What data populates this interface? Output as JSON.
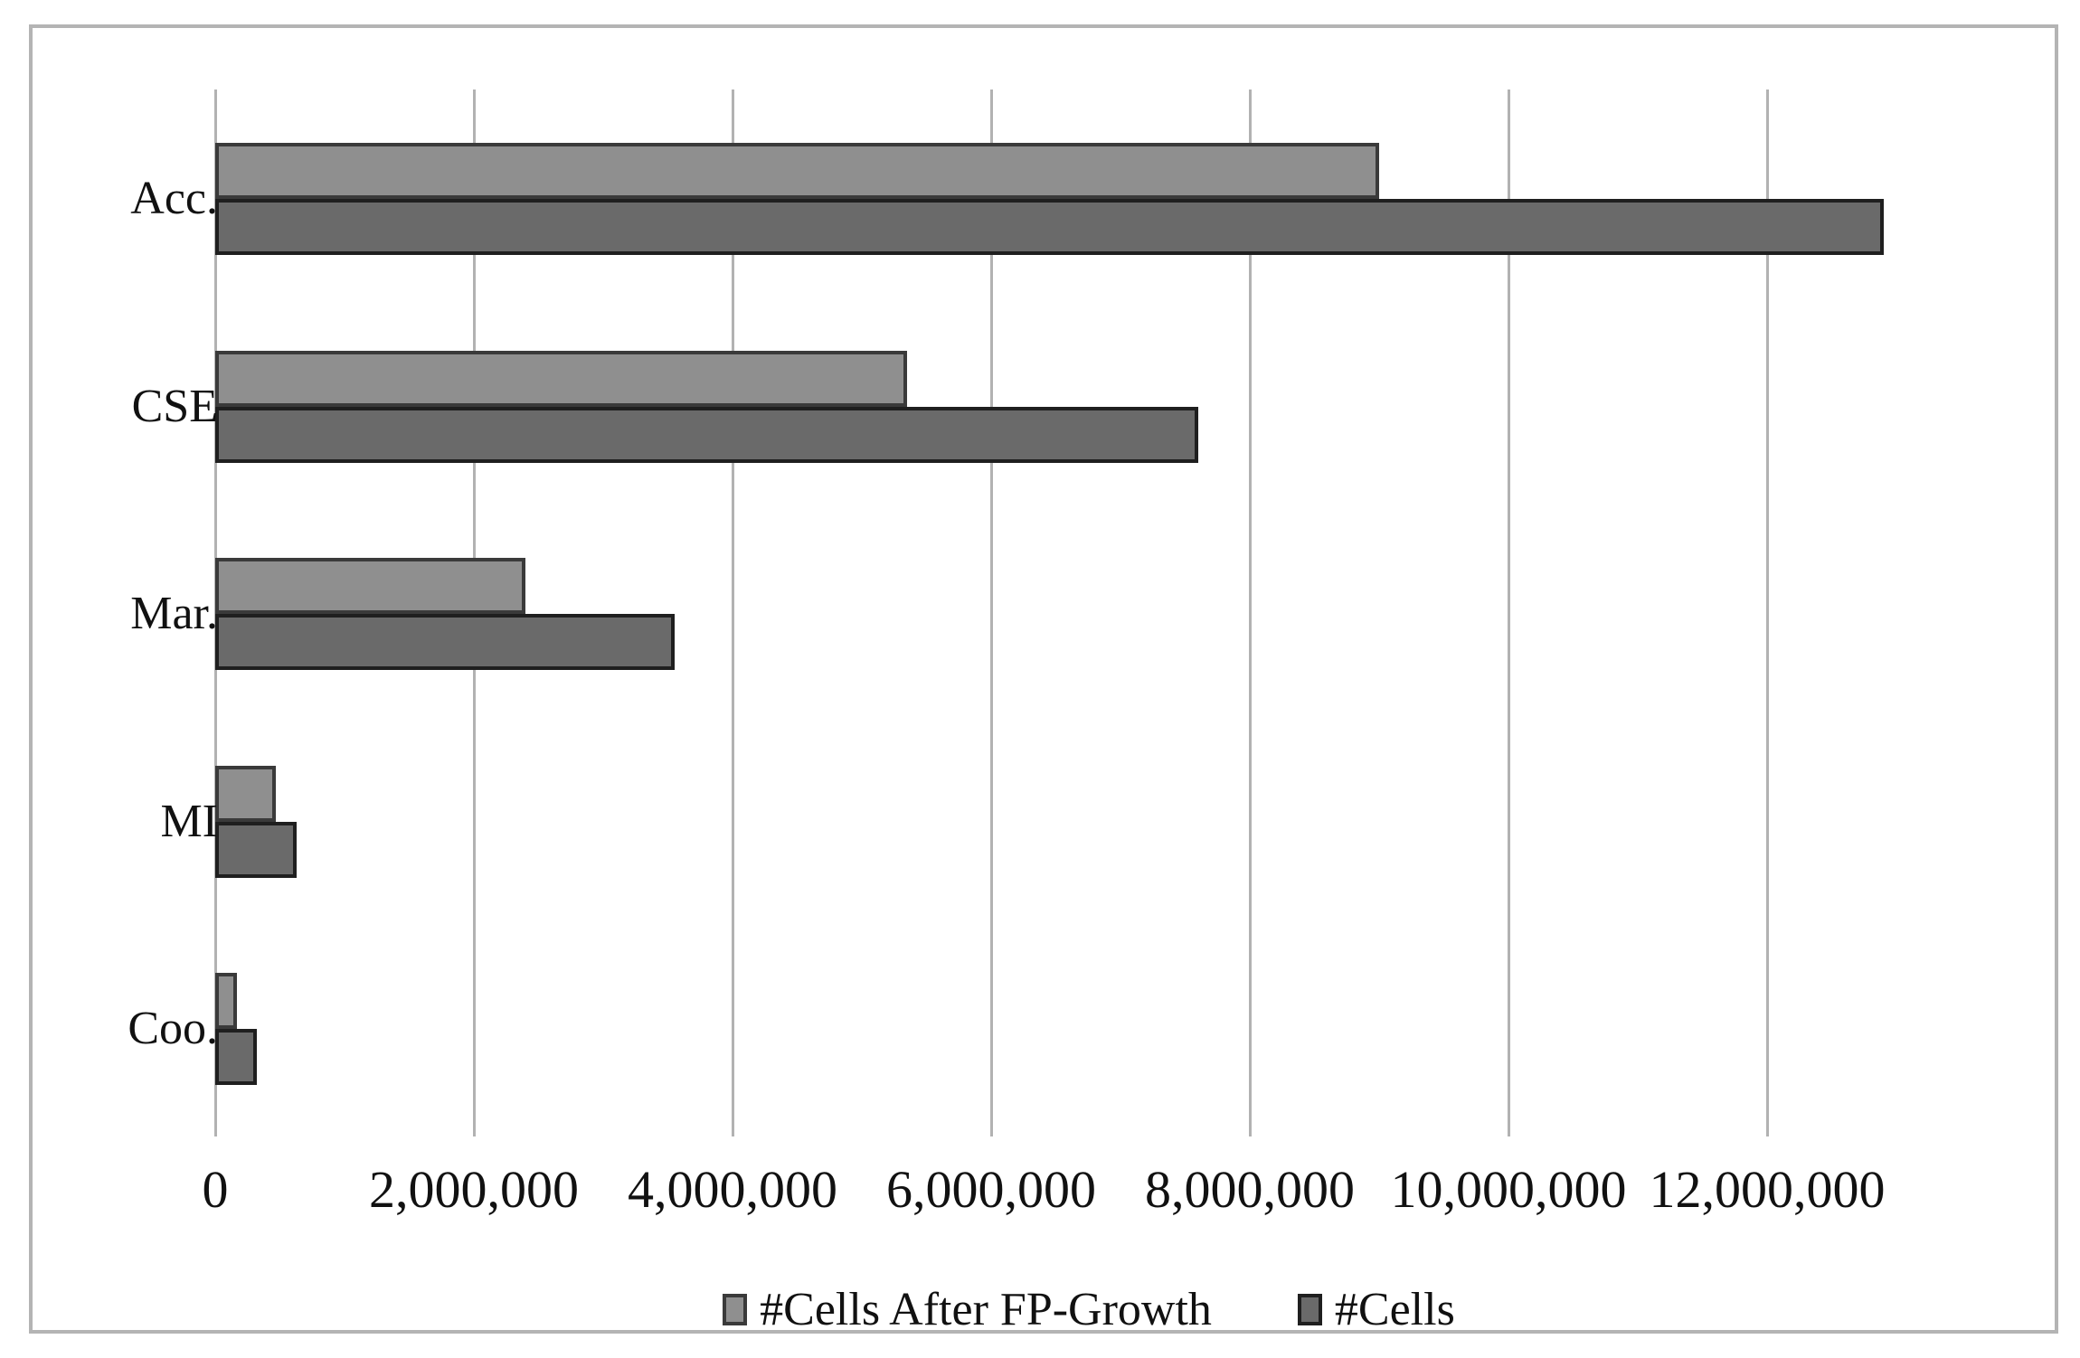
{
  "chart_data": {
    "type": "bar",
    "orientation": "horizontal",
    "title": "",
    "xlabel": "",
    "ylabel": "",
    "grid": "vertical-only",
    "legend_position": "bottom-center",
    "categories": [
      "Acc.",
      "CSE",
      "Mar.",
      "MI",
      "Coo."
    ],
    "series": [
      {
        "name": "#Cells After FP-Growth",
        "color": "#8f8f8f",
        "border_color": "#3a3a3a",
        "values": [
          9000000,
          5350000,
          2400000,
          470000,
          170000
        ]
      },
      {
        "name": "#Cells",
        "color": "#6a6a6a",
        "border_color": "#1f1f1f",
        "values": [
          12900000,
          7600000,
          3550000,
          630000,
          320000
        ]
      }
    ],
    "x_axis": {
      "min": 0,
      "max": 12000000,
      "tick_step": 2000000,
      "tick_values": [
        0,
        2000000,
        4000000,
        6000000,
        8000000,
        10000000,
        12000000
      ],
      "tick_labels": [
        "0",
        "2,000,000",
        "4,000,000",
        "6,000,000",
        "8,000,000",
        "10,000,000",
        "12,000,000"
      ]
    },
    "colors": {
      "gridline": "#b2b2b2",
      "frame_border": "#b4b4b4",
      "text": "#111111",
      "background": "#ffffff"
    }
  }
}
